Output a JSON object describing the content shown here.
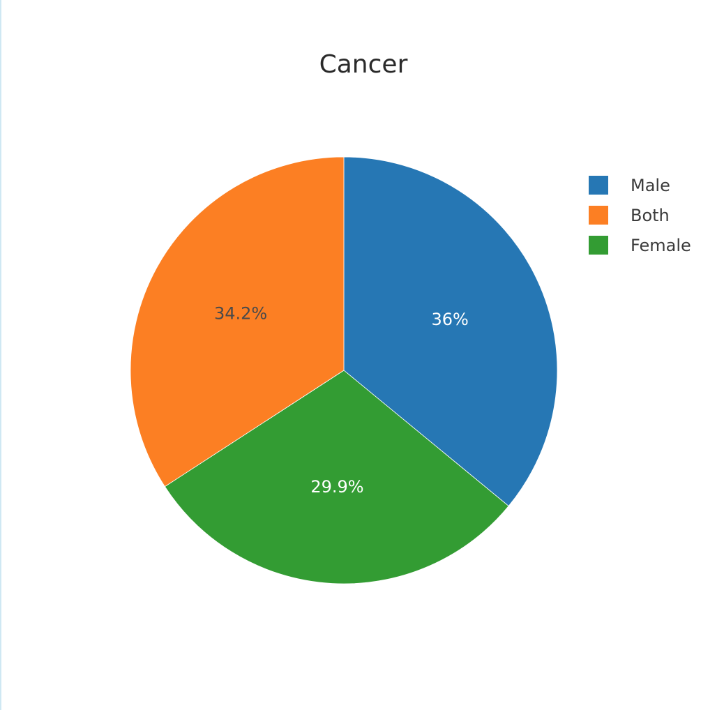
{
  "chart_data": {
    "type": "pie",
    "title": "Cancer",
    "slices": [
      {
        "label": "Male",
        "value": 36.0,
        "display": "36%",
        "color": "#2677b4",
        "text_color": "#ffffff"
      },
      {
        "label": "Female",
        "value": 29.9,
        "display": "29.9%",
        "color": "#339c33",
        "text_color": "#ffffff"
      },
      {
        "label": "Both",
        "value": 34.2,
        "display": "34.2%",
        "color": "#fc7f23",
        "text_color": "#4a4a4a"
      }
    ],
    "legend": {
      "placement": "right",
      "entries": [
        {
          "label": "Male",
          "color": "#2677b4"
        },
        {
          "label": "Both",
          "color": "#fc7f23"
        },
        {
          "label": "Female",
          "color": "#339c33"
        }
      ]
    }
  }
}
